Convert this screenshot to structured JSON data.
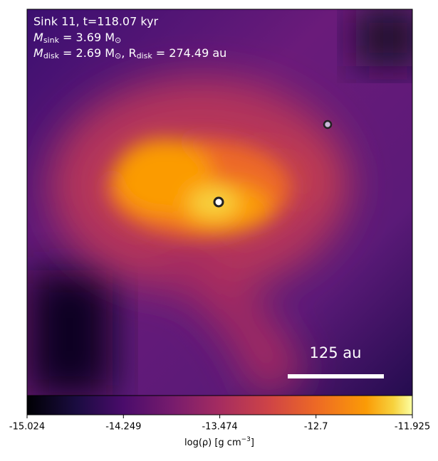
{
  "chart_data": {
    "type": "image",
    "annotations": {
      "line1": "Sink 11, t=118.07 kyr",
      "line2": {
        "symbol": "M",
        "subscript": "sink",
        "text": " = 3.69 M",
        "unit_subscript": "⊙"
      },
      "line3": {
        "symbol": "M",
        "subscript": "disk",
        "text": " = 2.69 M",
        "unit_subscript": "⊙",
        "text2": ", R",
        "subscript2": "disk",
        "text3": " = 274.49 au"
      }
    },
    "scale_bar_label": "125 au",
    "colorbar": {
      "label": {
        "text": "log(ρ) [g cm",
        "superscript": "−3",
        "end": "]"
      },
      "lim": [
        -15.024,
        -11.925
      ],
      "ticks": [
        -15.024,
        -14.249,
        -13.474,
        -12.7,
        {
          "value": -11.925,
          "label": "-11.925"
        }
      ],
      "cmap": "inferno"
    }
  }
}
